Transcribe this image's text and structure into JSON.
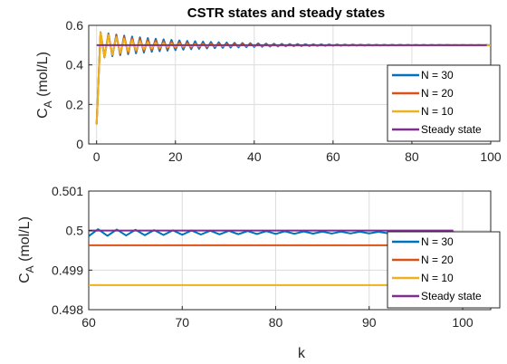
{
  "chart_data": [
    {
      "type": "line",
      "title": "CSTR states and steady states",
      "ylabel": "C_A (mol/L)",
      "ylabel_main": "C",
      "ylabel_sub": "A",
      "ylabel_rest": " (mol/L)",
      "xlim": [
        -2,
        100
      ],
      "ylim": [
        0,
        0.6
      ],
      "xticks": [
        0,
        20,
        40,
        60,
        80,
        100
      ],
      "yticks": [
        0,
        0.2,
        0.4,
        0.6
      ],
      "xtick_labels": [
        "0",
        "20",
        "40",
        "60",
        "80",
        "100"
      ],
      "ytick_labels": [
        "0",
        "0.2",
        "0.4",
        "0.6"
      ],
      "grid": true,
      "legend_position": "right",
      "series": [
        {
          "name": "N = 30",
          "color": "#0072BD",
          "start": 0.1,
          "steady": 0.49995,
          "amp": 0.065,
          "decay": 0.05,
          "end": 100
        },
        {
          "name": "N = 20",
          "color": "#D95319",
          "start": 0.1,
          "steady": 0.49963,
          "amp": 0.065,
          "decay": 0.075,
          "end": 100
        },
        {
          "name": "N = 10",
          "color": "#EDB120",
          "start": 0.1,
          "steady": 0.49862,
          "amp": 0.065,
          "decay": 0.11,
          "end": 100
        },
        {
          "name": "Steady state",
          "color": "#7E2F8E",
          "start": 0.5,
          "steady": 0.5,
          "amp": 0,
          "decay": 1,
          "end": 99
        }
      ]
    },
    {
      "type": "line",
      "title": "",
      "xlabel": "k",
      "ylabel": "C_A (mol/L)",
      "ylabel_main": "C",
      "ylabel_sub": "A",
      "ylabel_rest": " (mol/L)",
      "xlim": [
        60,
        103
      ],
      "ylim": [
        0.498,
        0.501
      ],
      "xticks": [
        60,
        70,
        80,
        90,
        100
      ],
      "yticks": [
        0.498,
        0.499,
        0.5,
        0.501
      ],
      "xtick_labels": [
        "60",
        "70",
        "80",
        "90",
        "100"
      ],
      "ytick_labels": [
        "0.498",
        "0.499",
        "0.5",
        "0.501"
      ],
      "grid": true,
      "legend_position": "right",
      "series": [
        {
          "name": "N = 30",
          "color": "#0072BD",
          "steady": 0.49995,
          "amp": 9e-05,
          "decay": 0.05,
          "end": 100
        },
        {
          "name": "N = 20",
          "color": "#D95319",
          "steady": 0.49963,
          "amp": 0,
          "decay": 1,
          "end": 100
        },
        {
          "name": "N = 10",
          "color": "#EDB120",
          "steady": 0.49862,
          "amp": 0,
          "decay": 1,
          "end": 100
        },
        {
          "name": "Steady state",
          "color": "#7E2F8E",
          "steady": 0.5,
          "amp": 0,
          "decay": 1,
          "end": 99
        }
      ]
    }
  ]
}
